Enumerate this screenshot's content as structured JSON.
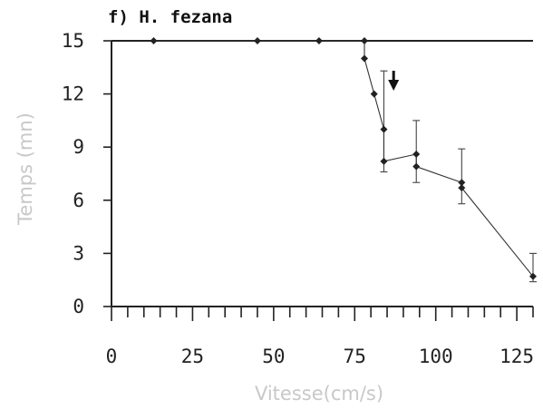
{
  "chart_data": {
    "type": "line",
    "title": "f) H. fezana",
    "xlabel": "Vitesse(cm/s)",
    "ylabel": "Temps (mn)",
    "xlim": [
      0,
      130
    ],
    "ylim": [
      0,
      15
    ],
    "x_ticks": [
      "0",
      "25",
      "50",
      "75",
      "100",
      "125"
    ],
    "x_tick_values": [
      0,
      25,
      50,
      75,
      100,
      125
    ],
    "y_ticks": [
      "0",
      "3",
      "6",
      "9",
      "12",
      "15"
    ],
    "y_tick_values": [
      0,
      3,
      6,
      9,
      12,
      15
    ],
    "x_minor_step": 5,
    "grid": false,
    "annotation": "down-arrow at x ≈ 87 cm/s",
    "annotation_x": 87,
    "series": [
      {
        "points": [
          {
            "x": 13,
            "y": 15
          },
          {
            "x": 45,
            "y": 15
          },
          {
            "x": 64,
            "y": 15
          },
          {
            "x": 78,
            "y": 15
          },
          {
            "x": 78,
            "y": 14
          },
          {
            "x": 81,
            "y": 12
          },
          {
            "x": 84,
            "y": 10
          },
          {
            "x": 84,
            "y": 8.2
          },
          {
            "x": 94,
            "y": 8.6
          },
          {
            "x": 94,
            "y": 7.9
          },
          {
            "x": 108,
            "y": 7
          },
          {
            "x": 108,
            "y": 6.7
          },
          {
            "x": 130,
            "y": 1.7
          }
        ]
      }
    ],
    "error_bars": [
      {
        "x": 84,
        "low": 7.6,
        "high": 13.3
      },
      {
        "x": 94,
        "low": 7.0,
        "high": 10.5
      },
      {
        "x": 108,
        "low": 5.8,
        "high": 8.9
      },
      {
        "x": 130,
        "low": 1.4,
        "high": 3.0
      }
    ]
  }
}
